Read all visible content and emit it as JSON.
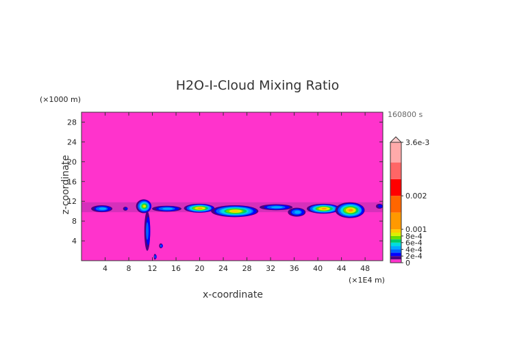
{
  "chart_data": {
    "type": "heatmap",
    "title": "H2O-I-Cloud Mixing Ratio",
    "xlabel": "x-coordinate",
    "ylabel": "z-coordinate",
    "x_unit": "(×1E4 m)",
    "z_unit": "(×1000 m)",
    "time_label": "160800 s",
    "xlim": [
      0,
      51
    ],
    "zlim": [
      0,
      30
    ],
    "x_ticks": [
      4,
      8,
      12,
      16,
      20,
      24,
      28,
      32,
      36,
      40,
      44,
      48
    ],
    "z_ticks": [
      4,
      8,
      12,
      16,
      20,
      24,
      28
    ],
    "background_color": "#ff33cc",
    "colorbar": {
      "max_label": "3.6e-3",
      "levels": [
        {
          "value": 0,
          "label": "0",
          "color": "#ff33cc"
        },
        {
          "value": 0.0001,
          "label": "",
          "color": "#4b0082"
        },
        {
          "value": 0.0002,
          "label": "2e-4",
          "color": "#0000ff"
        },
        {
          "value": 0.0003,
          "label": "",
          "color": "#0066ff"
        },
        {
          "value": 0.0004,
          "label": "4e-4",
          "color": "#00aaff"
        },
        {
          "value": 0.0005,
          "label": "",
          "color": "#00dddd"
        },
        {
          "value": 0.0006,
          "label": "6e-4",
          "color": "#00cc66"
        },
        {
          "value": 0.0007,
          "label": "",
          "color": "#66dd00"
        },
        {
          "value": 0.0008,
          "label": "8e-4",
          "color": "#ddee00"
        },
        {
          "value": 0.0009,
          "label": "",
          "color": "#ffcc00"
        },
        {
          "value": 0.001,
          "label": "0.001",
          "color": "#ff9900"
        },
        {
          "value": 0.0015,
          "label": "",
          "color": "#ff6600"
        },
        {
          "value": 0.002,
          "label": "0.002",
          "color": "#ff0000"
        },
        {
          "value": 0.0025,
          "label": "",
          "color": "#ff6666"
        },
        {
          "value": 0.003,
          "label": "",
          "color": "#ffaaaa"
        },
        {
          "value": 0.0036,
          "label": "3.6e-3",
          "color": "#ffcccc"
        }
      ]
    },
    "features": [
      {
        "x": 3.5,
        "z": 10.5,
        "rx": 1.8,
        "rz": 0.7,
        "peak": 0.0004
      },
      {
        "x": 7.5,
        "z": 10.5,
        "rx": 0.4,
        "rz": 0.4,
        "peak": 0.0002
      },
      {
        "x": 10.6,
        "z": 11.0,
        "rx": 1.3,
        "rz": 1.4,
        "peak": 0.0008
      },
      {
        "x": 11.2,
        "z": 6.0,
        "rx": 0.5,
        "rz": 4.0,
        "peak": 0.0003
      },
      {
        "x": 12.5,
        "z": 0.8,
        "rx": 0.2,
        "rz": 0.6,
        "peak": 0.0003
      },
      {
        "x": 13.5,
        "z": 3.0,
        "rx": 0.3,
        "rz": 0.5,
        "peak": 0.0003
      },
      {
        "x": 14.5,
        "z": 10.5,
        "rx": 2.5,
        "rz": 0.6,
        "peak": 0.0004
      },
      {
        "x": 20.0,
        "z": 10.6,
        "rx": 2.6,
        "rz": 0.9,
        "peak": 0.0011
      },
      {
        "x": 26.0,
        "z": 10.0,
        "rx": 4.0,
        "rz": 1.2,
        "peak": 0.0009
      },
      {
        "x": 33.0,
        "z": 10.8,
        "rx": 2.8,
        "rz": 0.6,
        "peak": 0.0004
      },
      {
        "x": 36.5,
        "z": 9.8,
        "rx": 1.5,
        "rz": 0.9,
        "peak": 0.0004
      },
      {
        "x": 41.0,
        "z": 10.5,
        "rx": 2.8,
        "rz": 1.0,
        "peak": 0.0012
      },
      {
        "x": 45.5,
        "z": 10.2,
        "rx": 2.5,
        "rz": 1.6,
        "peak": 0.0012
      },
      {
        "x": 50.5,
        "z": 11.0,
        "rx": 0.6,
        "rz": 0.5,
        "peak": 0.0002
      }
    ]
  }
}
